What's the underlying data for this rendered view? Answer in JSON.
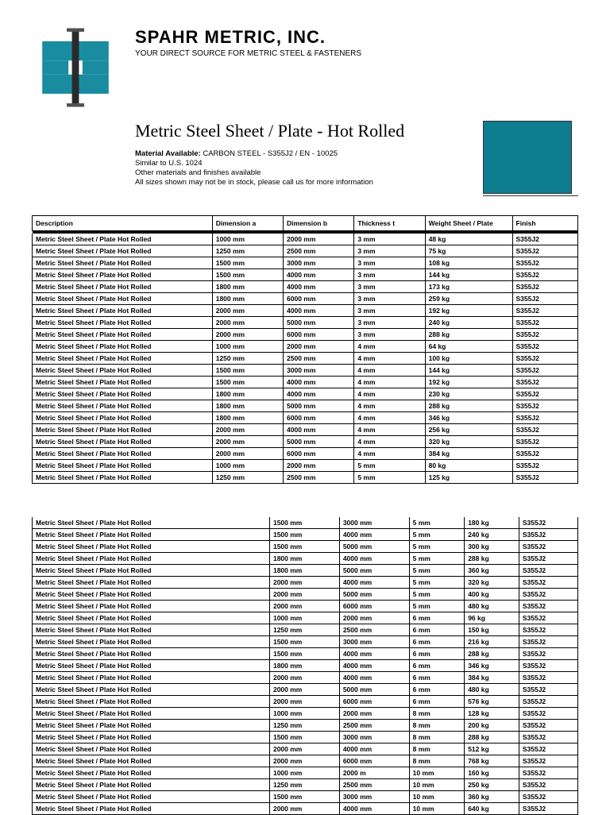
{
  "header": {
    "company": "SPAHR METRIC, INC.",
    "tagline": "YOUR DIRECT SOURCE FOR METRIC STEEL & FASTENERS"
  },
  "document": {
    "title": "Metric Steel Sheet / Plate - Hot Rolled",
    "material_label": "Material Available:",
    "material_value": " CARBON STEEL - S355J2 / EN - 10025",
    "similar": "Similar to U.S. 1024",
    "note1": "Other materials and finishes available",
    "note2": "All sizes shown may not be in stock, please call us for more information"
  },
  "swatch": {
    "color": "#0d7d8f"
  },
  "table": {
    "columns": [
      "Description",
      "Dimension a",
      "Dimension b",
      "Thickness t",
      "Weight Sheet / Plate",
      "Finish"
    ],
    "col_widths": [
      "33%",
      "13%",
      "13%",
      "13%",
      "16%",
      "12%"
    ],
    "desc": "Metric Steel Sheet / Plate Hot Rolled",
    "finish": "S355J2",
    "rows1": [
      {
        "a": "1000 mm",
        "b": "2000 mm",
        "t": "3 mm",
        "w": "48 kg"
      },
      {
        "a": "1250 mm",
        "b": "2500 mm",
        "t": "3 mm",
        "w": "75 kg"
      },
      {
        "a": "1500 mm",
        "b": "3000 mm",
        "t": "3 mm",
        "w": "108 kg"
      },
      {
        "a": "1500 mm",
        "b": "4000 mm",
        "t": "3 mm",
        "w": "144 kg"
      },
      {
        "a": "1800 mm",
        "b": "4000 mm",
        "t": "3 mm",
        "w": "173 kg"
      },
      {
        "a": "1800 mm",
        "b": "6000 mm",
        "t": "3 mm",
        "w": "259 kg"
      },
      {
        "a": "2000 mm",
        "b": "4000 mm",
        "t": "3 mm",
        "w": "192 kg"
      },
      {
        "a": "2000 mm",
        "b": "5000 mm",
        "t": "3 mm",
        "w": "240 kg"
      },
      {
        "a": "2000 mm",
        "b": "6000 mm",
        "t": "3 mm",
        "w": "288 kg"
      },
      {
        "a": "1000 mm",
        "b": "2000 mm",
        "t": "4 mm",
        "w": "64 kg"
      },
      {
        "a": "1250 mm",
        "b": "2500 mm",
        "t": "4 mm",
        "w": "100 kg"
      },
      {
        "a": "1500 mm",
        "b": "3000 mm",
        "t": "4 mm",
        "w": "144 kg"
      },
      {
        "a": "1500 mm",
        "b": "4000 mm",
        "t": "4 mm",
        "w": "192 kg"
      },
      {
        "a": "1800 mm",
        "b": "4000 mm",
        "t": "4 mm",
        "w": "230 kg"
      },
      {
        "a": "1800 mm",
        "b": "5000 mm",
        "t": "4 mm",
        "w": "288 kg"
      },
      {
        "a": "1800 mm",
        "b": "6000 mm",
        "t": "4 mm",
        "w": "346 kg"
      },
      {
        "a": "2000 mm",
        "b": "4000 mm",
        "t": "4 mm",
        "w": "256 kg"
      },
      {
        "a": "2000 mm",
        "b": "5000 mm",
        "t": "4 mm",
        "w": "320 kg"
      },
      {
        "a": "2000 mm",
        "b": "6000 mm",
        "t": "4 mm",
        "w": "384 kg"
      },
      {
        "a": "1000 mm",
        "b": "2000 mm",
        "t": "5 mm",
        "w": "80 kg"
      },
      {
        "a": "1250 mm",
        "b": "2500 mm",
        "t": "5 mm",
        "w": "125 kg"
      }
    ],
    "rows2": [
      {
        "a": "1500 mm",
        "b": "3000 mm",
        "t": "5 mm",
        "w": "180 kg"
      },
      {
        "a": "1500 mm",
        "b": "4000 mm",
        "t": "5 mm",
        "w": "240 kg"
      },
      {
        "a": "1500 mm",
        "b": "5000 mm",
        "t": "5 mm",
        "w": "300 kg"
      },
      {
        "a": "1800 mm",
        "b": "4000 mm",
        "t": "5 mm",
        "w": "288 kg"
      },
      {
        "a": "1800 mm",
        "b": "5000 mm",
        "t": "5 mm",
        "w": "360 kg"
      },
      {
        "a": "2000 mm",
        "b": "4000 mm",
        "t": "5 mm",
        "w": "320 kg"
      },
      {
        "a": "2000 mm",
        "b": "5000 mm",
        "t": "5 mm",
        "w": "400 kg"
      },
      {
        "a": "2000 mm",
        "b": "6000 mm",
        "t": "5 mm",
        "w": "480 kg"
      },
      {
        "a": "1000 mm",
        "b": "2000 mm",
        "t": "6 mm",
        "w": "96 kg"
      },
      {
        "a": "1250 mm",
        "b": "2500 mm",
        "t": "6 mm",
        "w": "150 kg"
      },
      {
        "a": "1500 mm",
        "b": "3000 mm",
        "t": "6 mm",
        "w": "216 kg"
      },
      {
        "a": "1500 mm",
        "b": "4000 mm",
        "t": "6 mm",
        "w": "288 kg"
      },
      {
        "a": "1800 mm",
        "b": "4000 mm",
        "t": "6 mm",
        "w": "346 kg"
      },
      {
        "a": "2000 mm",
        "b": "4000 mm",
        "t": "6 mm",
        "w": "384 kg"
      },
      {
        "a": "2000 mm",
        "b": "5000 mm",
        "t": "6 mm",
        "w": "480 kg"
      },
      {
        "a": "2000 mm",
        "b": "6000 mm",
        "t": "6 mm",
        "w": "576 kg"
      },
      {
        "a": "1000 mm",
        "b": "2000 mm",
        "t": "8 mm",
        "w": "128 kg"
      },
      {
        "a": "1250 mm",
        "b": "2500 mm",
        "t": "8 mm",
        "w": "200 kg"
      },
      {
        "a": "1500 mm",
        "b": "3000 mm",
        "t": "8 mm",
        "w": "288 kg"
      },
      {
        "a": "2000 mm",
        "b": "4000 mm",
        "t": "8 mm",
        "w": "512 kg"
      },
      {
        "a": "2000 mm",
        "b": "6000 mm",
        "t": "8 mm",
        "w": "768 kg"
      },
      {
        "a": "1000 mm",
        "b": "2000 m",
        "t": "10 mm",
        "w": "160 kg"
      },
      {
        "a": "1250 mm",
        "b": "2500 mm",
        "t": "10 mm",
        "w": "250 kg"
      },
      {
        "a": "1500 mm",
        "b": "3000 mm",
        "t": "10 mm",
        "w": "360 kg"
      },
      {
        "a": "2000 mm",
        "b": "4000 mm",
        "t": "10 mm",
        "w": "640 kg"
      }
    ]
  }
}
